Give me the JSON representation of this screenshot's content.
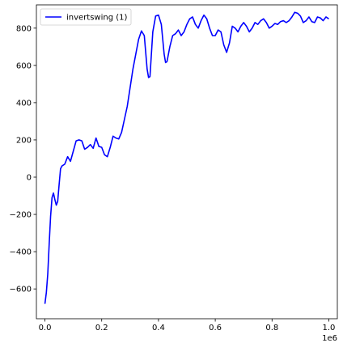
{
  "chart_data": {
    "type": "line",
    "title": "",
    "xlabel": "",
    "ylabel": "",
    "x_offset_label": "1e6",
    "xlim": [
      -30000,
      1030000
    ],
    "ylim": [
      -760,
      925
    ],
    "x_ticks": [
      0,
      200000,
      400000,
      600000,
      800000,
      1000000
    ],
    "x_tick_labels": [
      "0.0",
      "0.2",
      "0.4",
      "0.6",
      "0.8",
      "1.0"
    ],
    "y_ticks": [
      -600,
      -400,
      -200,
      0,
      200,
      400,
      600,
      800
    ],
    "y_tick_labels": [
      "−600",
      "−400",
      "−200",
      "0",
      "200",
      "400",
      "600",
      "800"
    ],
    "grid": false,
    "legend_position": "top-left",
    "series": [
      {
        "name": "invertswing (1)",
        "color": "#0000ff",
        "x": [
          0,
          5000,
          10000,
          15000,
          20000,
          25000,
          30000,
          35000,
          40000,
          45000,
          50000,
          55000,
          60000,
          70000,
          80000,
          90000,
          100000,
          110000,
          120000,
          130000,
          140000,
          150000,
          160000,
          170000,
          180000,
          190000,
          200000,
          210000,
          220000,
          230000,
          240000,
          250000,
          260000,
          270000,
          280000,
          290000,
          300000,
          310000,
          320000,
          330000,
          340000,
          350000,
          360000,
          365000,
          370000,
          380000,
          390000,
          400000,
          410000,
          420000,
          425000,
          430000,
          440000,
          450000,
          460000,
          470000,
          480000,
          490000,
          500000,
          510000,
          520000,
          530000,
          540000,
          550000,
          560000,
          570000,
          580000,
          590000,
          600000,
          610000,
          620000,
          630000,
          640000,
          650000,
          660000,
          670000,
          680000,
          690000,
          700000,
          710000,
          720000,
          730000,
          740000,
          750000,
          760000,
          770000,
          780000,
          790000,
          800000,
          810000,
          820000,
          830000,
          840000,
          850000,
          860000,
          870000,
          880000,
          890000,
          900000,
          910000,
          920000,
          930000,
          940000,
          950000,
          960000,
          970000,
          980000,
          990000,
          1000000
        ],
        "values": [
          -680,
          -620,
          -520,
          -360,
          -210,
          -110,
          -85,
          -120,
          -150,
          -130,
          -40,
          45,
          60,
          70,
          110,
          85,
          140,
          195,
          200,
          195,
          150,
          160,
          175,
          155,
          210,
          165,
          160,
          120,
          110,
          160,
          220,
          210,
          205,
          240,
          310,
          380,
          480,
          580,
          660,
          740,
          785,
          760,
          580,
          535,
          540,
          780,
          865,
          870,
          820,
          660,
          615,
          620,
          700,
          760,
          770,
          790,
          760,
          780,
          820,
          850,
          860,
          820,
          800,
          840,
          870,
          850,
          800,
          760,
          760,
          790,
          780,
          710,
          670,
          720,
          810,
          800,
          780,
          810,
          830,
          810,
          780,
          800,
          830,
          820,
          840,
          850,
          830,
          800,
          810,
          825,
          820,
          835,
          840,
          830,
          840,
          860,
          885,
          880,
          865,
          830,
          840,
          860,
          835,
          830,
          860,
          855,
          840,
          860,
          850
        ]
      }
    ]
  }
}
